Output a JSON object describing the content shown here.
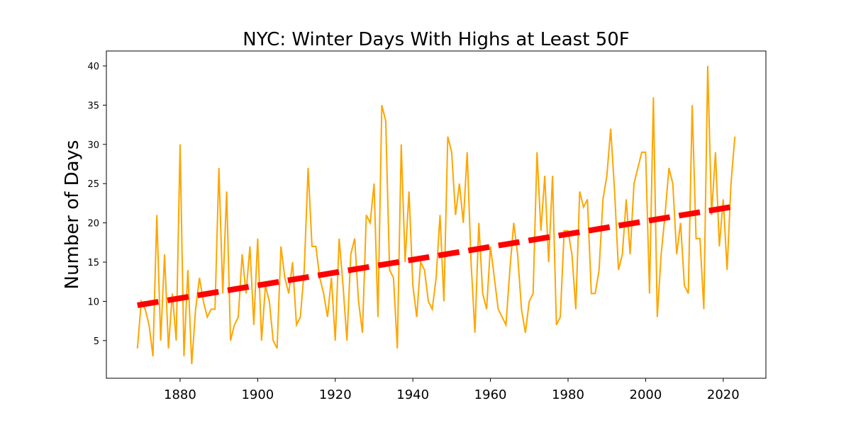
{
  "chart_data": {
    "type": "line",
    "title": "NYC: Winter Days With Highs at Least 50F",
    "xlabel": "",
    "ylabel": "Number of Days",
    "xlim": [
      1861,
      2031
    ],
    "ylim": [
      0.2,
      41.9
    ],
    "xticks": [
      1880,
      1900,
      1920,
      1940,
      1960,
      1980,
      2000,
      2020
    ],
    "yticks": [
      5,
      10,
      15,
      20,
      25,
      30,
      35,
      40
    ],
    "grid": false,
    "series": [
      {
        "color": "#ffa500",
        "style": "solid",
        "x": [
          1869,
          1870,
          1871,
          1872,
          1873,
          1874,
          1875,
          1876,
          1877,
          1878,
          1879,
          1880,
          1881,
          1882,
          1883,
          1884,
          1885,
          1886,
          1887,
          1888,
          1889,
          1890,
          1891,
          1892,
          1893,
          1894,
          1895,
          1896,
          1897,
          1898,
          1899,
          1900,
          1901,
          1902,
          1903,
          1904,
          1905,
          1906,
          1907,
          1908,
          1909,
          1910,
          1911,
          1912,
          1913,
          1914,
          1915,
          1916,
          1917,
          1918,
          1919,
          1920,
          1921,
          1922,
          1923,
          1924,
          1925,
          1926,
          1927,
          1928,
          1929,
          1930,
          1931,
          1932,
          1933,
          1934,
          1935,
          1936,
          1937,
          1938,
          1939,
          1940,
          1941,
          1942,
          1943,
          1944,
          1945,
          1946,
          1947,
          1948,
          1949,
          1950,
          1951,
          1952,
          1953,
          1954,
          1955,
          1956,
          1957,
          1958,
          1959,
          1960,
          1961,
          1962,
          1963,
          1964,
          1965,
          1966,
          1967,
          1968,
          1969,
          1970,
          1971,
          1972,
          1973,
          1974,
          1975,
          1976,
          1977,
          1978,
          1979,
          1980,
          1981,
          1982,
          1983,
          1984,
          1985,
          1986,
          1987,
          1988,
          1989,
          1990,
          1991,
          1992,
          1993,
          1994,
          1995,
          1996,
          1997,
          1998,
          1999,
          2000,
          2001,
          2002,
          2003,
          2004,
          2005,
          2006,
          2007,
          2008,
          2009,
          2010,
          2011,
          2012,
          2013,
          2014,
          2015,
          2016,
          2017,
          2018,
          2019,
          2020,
          2021,
          2022,
          2023
        ],
        "values": [
          4,
          10,
          9,
          7,
          3,
          21,
          5,
          16,
          4,
          11,
          5,
          30,
          3,
          14,
          2,
          9,
          13,
          10,
          8,
          9,
          9,
          27,
          11,
          24,
          5,
          7,
          8,
          16,
          11,
          17,
          7,
          18,
          5,
          12,
          10,
          5,
          4,
          17,
          13,
          11,
          15,
          7,
          8,
          14,
          27,
          17,
          17,
          13,
          11,
          8,
          13,
          5,
          18,
          12,
          5,
          16,
          18,
          10,
          6,
          21,
          20,
          25,
          8,
          35,
          33,
          14,
          13,
          4,
          30,
          15,
          24,
          12,
          8,
          15,
          14,
          10,
          9,
          13,
          21,
          10,
          31,
          29,
          21,
          25,
          20,
          29,
          15,
          6,
          20,
          11,
          9,
          17,
          13,
          9,
          8,
          7,
          14,
          20,
          16,
          9,
          6,
          10,
          11,
          29,
          19,
          26,
          15,
          26,
          7,
          8,
          19,
          19,
          16,
          9,
          24,
          22,
          23,
          11,
          11,
          14,
          23,
          26,
          32,
          24,
          14,
          16,
          23,
          16,
          25,
          27,
          29,
          29,
          11,
          36,
          8,
          16,
          21,
          27,
          25,
          16,
          20,
          12,
          11,
          35,
          18,
          18,
          9,
          40,
          21,
          29,
          17,
          23,
          14,
          25,
          31
        ]
      },
      {
        "color": "#ff0000",
        "style": "dashed",
        "x": [
          1869,
          2023
        ],
        "values": [
          9.5,
          22.1
        ]
      }
    ]
  }
}
